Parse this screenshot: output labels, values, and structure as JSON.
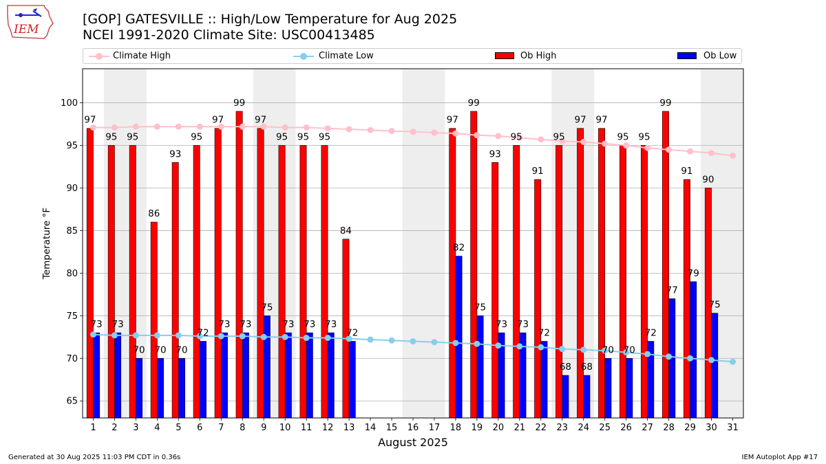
{
  "header": {
    "logo_text": "IEM",
    "title_line1": "[GOP] GATESVILLE :: High/Low Temperature for Aug 2025",
    "title_line2": "NCEI 1991-2020 Climate Site: USC00413485"
  },
  "legend": [
    {
      "label": "Climate High",
      "color": "#ffc0cb",
      "kind": "line"
    },
    {
      "label": "Climate Low",
      "color": "#87ceeb",
      "kind": "line"
    },
    {
      "label": "Ob High",
      "color": "#ff0000",
      "kind": "bar"
    },
    {
      "label": "Ob Low",
      "color": "#0000ff",
      "kind": "bar"
    }
  ],
  "footer": {
    "left": "Generated at 30 Aug 2025 11:03 PM CDT in 0.36s",
    "right": "IEM Autoplot App #17"
  },
  "chart_data": {
    "type": "bar",
    "title": "[GOP] GATESVILLE :: High/Low Temperature for Aug 2025",
    "xlabel": "August 2025",
    "ylabel": "Temperature °F",
    "ylabel_display": "Temperature $^\\circ$F",
    "ylim": [
      63,
      104
    ],
    "yticks": [
      65,
      70,
      75,
      80,
      85,
      90,
      95,
      100
    ],
    "xlim": [
      0.5,
      31.5
    ],
    "grid": "y",
    "weekend_shading": [
      [
        2,
        3
      ],
      [
        9,
        10
      ],
      [
        16,
        17
      ],
      [
        23,
        24
      ],
      [
        30,
        31
      ]
    ],
    "categories": [
      1,
      2,
      3,
      4,
      5,
      6,
      7,
      8,
      9,
      10,
      11,
      12,
      13,
      14,
      15,
      16,
      17,
      18,
      19,
      20,
      21,
      22,
      23,
      24,
      25,
      26,
      27,
      28,
      29,
      30,
      31
    ],
    "series": [
      {
        "name": "Ob High",
        "color": "#ff0000",
        "values": [
          97,
          95,
          95,
          86,
          93,
          95,
          97,
          99,
          97,
          95,
          95,
          95,
          84,
          null,
          null,
          null,
          null,
          97,
          99,
          93,
          95,
          91,
          95,
          97,
          97,
          95,
          95,
          99,
          91,
          90,
          null
        ],
        "labels": [
          "97",
          "95",
          "95",
          "86",
          "93",
          "95",
          "97",
          "99",
          "97",
          "95",
          "95",
          "95",
          "84",
          "",
          "",
          "",
          "",
          "97",
          "99",
          "93",
          "95",
          "91",
          "95",
          "97",
          "97",
          "95",
          "95",
          "99",
          "91",
          "90",
          ""
        ]
      },
      {
        "name": "Ob Low",
        "color": "#0000ff",
        "values": [
          73,
          73,
          70,
          70,
          70,
          72,
          73,
          73,
          75,
          73,
          73,
          73,
          72,
          null,
          null,
          null,
          null,
          82,
          75,
          73,
          73,
          72,
          68,
          68,
          70,
          70,
          72,
          77,
          79,
          75.3,
          null
        ],
        "labels": [
          "73",
          "73",
          "70",
          "70",
          "70",
          "72",
          "73",
          "73",
          "75",
          "73",
          "73",
          "73",
          "72",
          "",
          "",
          "",
          "",
          "82",
          "75",
          "73",
          "73",
          "72",
          "68",
          "68",
          "70",
          "70",
          "72",
          "77",
          "79",
          "75",
          ""
        ]
      },
      {
        "name": "Climate High",
        "color": "#ffc0cb",
        "values": [
          97.1,
          97.1,
          97.2,
          97.2,
          97.2,
          97.2,
          97.2,
          97.2,
          97.2,
          97.1,
          97.1,
          97.0,
          96.9,
          96.8,
          96.7,
          96.6,
          96.5,
          96.4,
          96.2,
          96.1,
          95.9,
          95.7,
          95.5,
          95.4,
          95.2,
          95.0,
          94.7,
          94.5,
          94.3,
          94.1,
          93.8
        ]
      },
      {
        "name": "Climate Low",
        "color": "#87ceeb",
        "values": [
          72.8,
          72.7,
          72.7,
          72.7,
          72.7,
          72.6,
          72.6,
          72.6,
          72.5,
          72.5,
          72.4,
          72.4,
          72.3,
          72.2,
          72.1,
          72.0,
          71.9,
          71.8,
          71.7,
          71.5,
          71.4,
          71.3,
          71.1,
          71.0,
          70.9,
          70.7,
          70.5,
          70.2,
          70.0,
          69.8,
          69.6
        ]
      }
    ]
  }
}
